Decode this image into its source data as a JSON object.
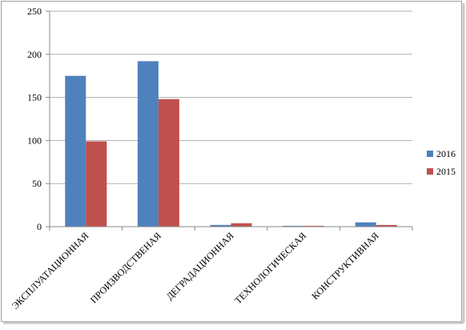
{
  "chart_data": {
    "type": "bar",
    "categories": [
      "ЭКСПЛУАТАЦИОННАЯ",
      "ПРОИЗВОДСТВЕНАЯ",
      "ДЕГРАДАЦИОННАЯ",
      "ТЕХНОЛОГИЧЕСКАЯ",
      "КОНСТРУКТИВНАЯ"
    ],
    "series": [
      {
        "name": "2016",
        "color": "#4f81bd",
        "values": [
          175,
          192,
          2,
          1,
          5
        ]
      },
      {
        "name": "2015",
        "color": "#c0504d",
        "values": [
          99,
          148,
          4,
          1,
          2
        ]
      }
    ],
    "ylim": [
      0,
      250
    ],
    "yticks": [
      0,
      50,
      100,
      150,
      200,
      250
    ],
    "grid": true,
    "legend": "right"
  }
}
